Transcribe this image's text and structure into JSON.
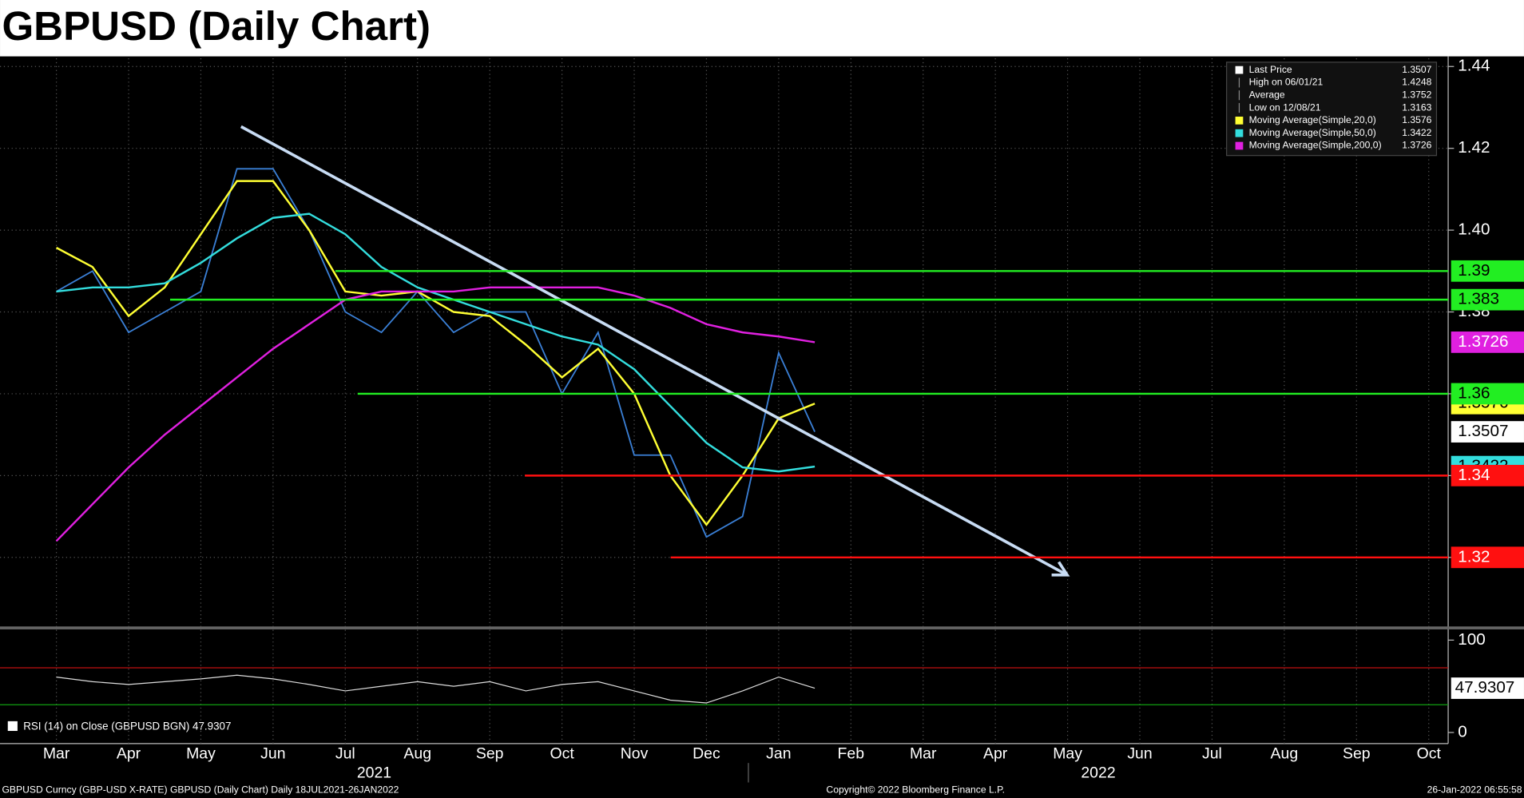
{
  "chart_data": {
    "type": "line",
    "title": "GBPUSD (Daily Chart)",
    "categories": [
      "Mar",
      null,
      "Apr",
      null,
      "May",
      null,
      "Jun",
      null,
      "Jul",
      null,
      "Aug",
      null,
      "Sep",
      null,
      "Oct",
      null,
      "Nov",
      null,
      "Dec",
      null,
      "Jan",
      null,
      "Feb",
      null,
      "Mar",
      null,
      "Apr",
      null,
      "May",
      null,
      "Jun",
      null,
      "Jul",
      null,
      "Aug",
      null,
      "Sep",
      null,
      "Oct"
    ],
    "years": [
      "2021",
      "2022"
    ],
    "series": [
      {
        "name": "Last Price",
        "color": "#3a7fd5",
        "values": [
          1.385,
          1.39,
          1.375,
          1.38,
          1.385,
          1.415,
          1.415,
          1.4,
          1.38,
          1.375,
          1.385,
          1.375,
          1.38,
          1.38,
          1.36,
          1.375,
          1.345,
          1.345,
          1.325,
          1.33,
          1.37,
          1.3507,
          null,
          null,
          null,
          null,
          null,
          null,
          null,
          null,
          null,
          null,
          null,
          null,
          null,
          null,
          null,
          null,
          null
        ]
      },
      {
        "name": "Moving Average(Simple,20,0)",
        "color": "#ffff33",
        "values": [
          1.3957,
          1.391,
          1.379,
          1.386,
          1.399,
          1.412,
          1.412,
          1.4,
          1.385,
          1.384,
          1.385,
          1.38,
          1.379,
          1.372,
          1.364,
          1.371,
          1.36,
          1.34,
          1.328,
          1.34,
          1.354,
          1.3576,
          null,
          null,
          null,
          null,
          null,
          null,
          null,
          null,
          null,
          null,
          null,
          null,
          null,
          null,
          null,
          null,
          null
        ]
      },
      {
        "name": "Moving Average(Simple,50,0)",
        "color": "#33dddd",
        "values": [
          1.385,
          1.386,
          1.386,
          1.387,
          1.392,
          1.398,
          1.403,
          1.404,
          1.399,
          1.391,
          1.386,
          1.383,
          1.38,
          1.377,
          1.374,
          1.372,
          1.366,
          1.357,
          1.348,
          1.342,
          1.341,
          1.3422,
          null,
          null,
          null,
          null,
          null,
          null,
          null,
          null,
          null,
          null,
          null,
          null,
          null,
          null,
          null,
          null,
          null
        ]
      },
      {
        "name": "Moving Average(Simple,200,0)",
        "color": "#e020e0",
        "values": [
          1.324,
          1.333,
          1.342,
          1.35,
          1.357,
          1.364,
          1.371,
          1.377,
          1.383,
          1.385,
          1.385,
          1.385,
          1.386,
          1.386,
          1.386,
          1.386,
          1.384,
          1.381,
          1.377,
          1.375,
          1.374,
          1.3726,
          null,
          null,
          null,
          null,
          null,
          null,
          null,
          null,
          null,
          null,
          null,
          null,
          null,
          null,
          null,
          null,
          null
        ]
      }
    ],
    "legend": [
      {
        "label": "Last Price",
        "value": "1.3507"
      },
      {
        "label": "High on 06/01/21",
        "value": "1.4248"
      },
      {
        "label": "Average",
        "value": "1.3752"
      },
      {
        "label": "Low on 12/08/21",
        "value": "1.3163"
      },
      {
        "label": "Moving Average(Simple,20,0)",
        "value": "1.3576"
      },
      {
        "label": "Moving Average(Simple,50,0)",
        "value": "1.3422"
      },
      {
        "label": "Moving Average(Simple,200,0)",
        "value": "1.3726"
      }
    ],
    "ylim": [
      1.303,
      1.442
    ],
    "yticks": [
      {
        "value": 1.32,
        "label": "1.32"
      },
      {
        "value": 1.34,
        "label": "1.34"
      },
      {
        "value": 1.36,
        "label": "1.36"
      },
      {
        "value": 1.38,
        "label": "1.38"
      },
      {
        "value": 1.4,
        "label": "1.40"
      },
      {
        "value": 1.42,
        "label": "1.42"
      },
      {
        "value": 1.44,
        "label": "1.44"
      }
    ],
    "levels": [
      {
        "value": 1.39,
        "color": "#22ee22"
      },
      {
        "value": 1.383,
        "color": "#22ee22"
      },
      {
        "value": 1.36,
        "color": "#22ee22"
      },
      {
        "value": 1.34,
        "color": "#ff1010"
      },
      {
        "value": 1.32,
        "color": "#ff1010"
      }
    ],
    "trendline": {
      "from": 1.4253,
      "to": 1.3157
    },
    "grid": true,
    "rsi": {
      "name": "RSI (14)  on Close (GBPUSD BGN) 47.9307",
      "ylim": [
        -12,
        109
      ],
      "yticks": [
        0,
        100
      ],
      "overbought": 70,
      "oversold": 30,
      "values": [
        60,
        55,
        52,
        55,
        58,
        62,
        58,
        52,
        45,
        50,
        55,
        50,
        55,
        45,
        52,
        55,
        45,
        35,
        32,
        45,
        60,
        47.9307,
        null,
        null,
        null,
        null,
        null,
        null,
        null,
        null,
        null,
        null,
        null,
        null,
        null,
        null,
        null,
        null,
        null
      ]
    },
    "footer": [
      "GBPUSD Curncy (GBP-USD X-RATE) GBPUSD (Daily Chart)  Daily 18JUL2021-26JAN2022",
      "Copyright© 2022 Bloomberg Finance L.P.",
      "26-Jan-2022 06:55:58"
    ]
  }
}
